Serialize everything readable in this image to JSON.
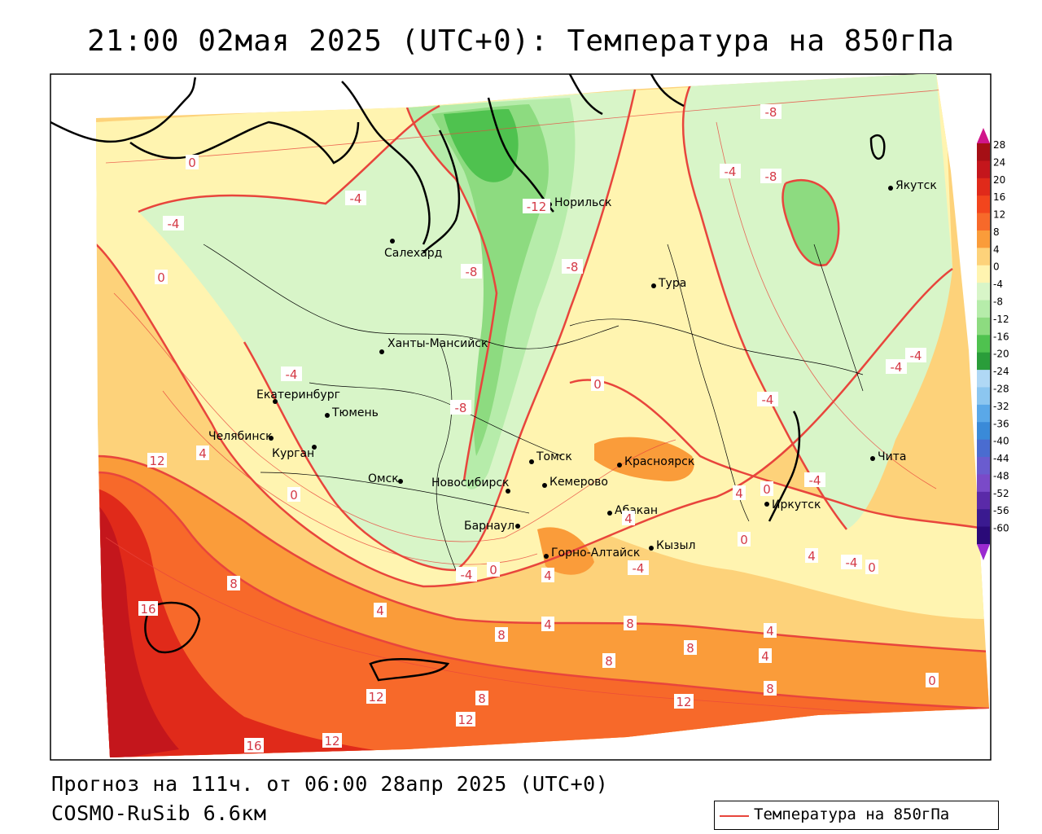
{
  "title": "21:00 02мая 2025 (UTC+0): Температура на 850гПа",
  "footer": {
    "forecast": "Прогноз на 111ч. от 06:00 28апр 2025 (UTC+0)",
    "model": "COSMO-RuSib 6.6км"
  },
  "legend": {
    "label": "Температура на 850гПа",
    "color": "#e8453c"
  },
  "colorbar": {
    "ticks": [
      "28",
      "24",
      "20",
      "16",
      "12",
      "8",
      "4",
      "0",
      "-4",
      "-8",
      "-12",
      "-16",
      "-20",
      "-24",
      "-28",
      "-32",
      "-36",
      "-40",
      "-44",
      "-48",
      "-52",
      "-56",
      "-60"
    ],
    "colors": [
      "#a50f15",
      "#c4161c",
      "#e02a1a",
      "#f2451d",
      "#f7692a",
      "#fa9c3a",
      "#fdd27a",
      "#fff4b0",
      "#d8f5c8",
      "#b6ecaa",
      "#8ddb80",
      "#4fc24f",
      "#2a9d3a",
      "#b0d8f5",
      "#8cc6f0",
      "#5aa8e8",
      "#3a8ad8",
      "#4a6cd0",
      "#6a5ccf",
      "#7a4ac8",
      "#5a2aa8",
      "#3a1a90",
      "#2a0a78"
    ]
  },
  "cities": [
    {
      "name": "Салехард"
    },
    {
      "name": "Норильск"
    },
    {
      "name": "Якутск"
    },
    {
      "name": "Тура"
    },
    {
      "name": "Ханты-Мансийск"
    },
    {
      "name": "Екатеринбург"
    },
    {
      "name": "Тюмень"
    },
    {
      "name": "Челябинск"
    },
    {
      "name": "Курган"
    },
    {
      "name": "Омск"
    },
    {
      "name": "Новосибирск"
    },
    {
      "name": "Томск"
    },
    {
      "name": "Кемерово"
    },
    {
      "name": "Красноярск"
    },
    {
      "name": "Абакан"
    },
    {
      "name": "Барнаул"
    },
    {
      "name": "Горно-Алтайск"
    },
    {
      "name": "Кызыл"
    },
    {
      "name": "Иркутск"
    },
    {
      "name": "Чита"
    }
  ],
  "isotherm_labels": [
    "0",
    "-4",
    "-4",
    "-8",
    "-4",
    "-8",
    "-8",
    "-12",
    "-8",
    "0",
    "-4",
    "-8",
    "0",
    "-4",
    "-4",
    "-4",
    "-4",
    "-4",
    "-4",
    "0",
    "0",
    "0",
    "4",
    "4",
    "4",
    "4",
    "0",
    "-4",
    "0",
    "12",
    "4",
    "8",
    "16",
    "4",
    "8",
    "4",
    "8",
    "8",
    "8",
    "4",
    "8",
    "4",
    "12",
    "8",
    "12",
    "12",
    "12",
    "16",
    "0"
  ]
}
